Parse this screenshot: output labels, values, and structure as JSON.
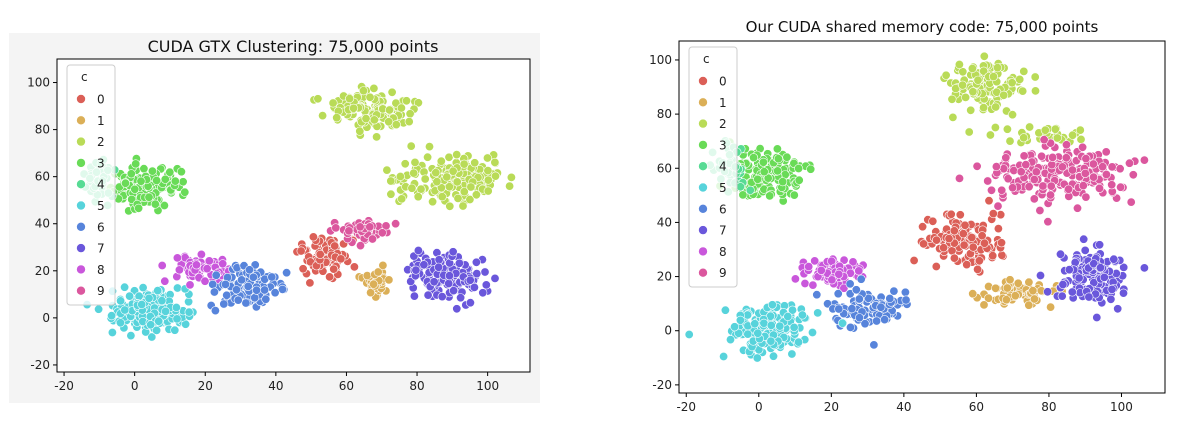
{
  "chart_data": [
    {
      "type": "scatter",
      "title": "CUDA GTX Clustering: 75,000 points",
      "xlabel": "",
      "ylabel": "",
      "xlim": [
        -22,
        112
      ],
      "ylim": [
        -23,
        110
      ],
      "xticks": [
        -20,
        0,
        20,
        40,
        60,
        80,
        100
      ],
      "yticks": [
        -20,
        0,
        20,
        40,
        60,
        80,
        100
      ],
      "legend": {
        "title": "c",
        "position": "top-left",
        "entries": [
          "0",
          "1",
          "2",
          "3",
          "4",
          "5",
          "6",
          "7",
          "8",
          "9"
        ]
      },
      "palette": [
        "#db5f57",
        "#dbaf57",
        "#b9db57",
        "#69db57",
        "#57db94",
        "#57d3db",
        "#5784db",
        "#6a57db",
        "#c957db",
        "#db579e"
      ],
      "clusters": [
        {
          "label": "3",
          "color": "#69db57",
          "center": [
            3,
            55
          ],
          "spread": [
            9,
            8
          ],
          "count": 140
        },
        {
          "label": "4",
          "color": "#57db94",
          "center": [
            -10,
            58
          ],
          "spread": [
            4,
            7
          ],
          "count": 45
        },
        {
          "label": "2",
          "color": "#b9db57",
          "center": [
            67,
            88
          ],
          "spread": [
            12,
            8
          ],
          "count": 130
        },
        {
          "label": "2",
          "color": "#b9db57",
          "center": [
            90,
            59
          ],
          "spread": [
            14,
            10
          ],
          "count": 190
        },
        {
          "label": "5",
          "color": "#57d3db",
          "center": [
            4,
            3
          ],
          "spread": [
            10,
            8
          ],
          "count": 170
        },
        {
          "label": "8",
          "color": "#c957db",
          "center": [
            19,
            21
          ],
          "spread": [
            8,
            5
          ],
          "count": 70
        },
        {
          "label": "6",
          "color": "#5784db",
          "center": [
            33,
            13
          ],
          "spread": [
            9,
            8
          ],
          "count": 110
        },
        {
          "label": "0",
          "color": "#db5f57",
          "center": [
            53,
            26
          ],
          "spread": [
            6,
            8
          ],
          "count": 90
        },
        {
          "label": "9",
          "color": "#db579e",
          "center": [
            64,
            37
          ],
          "spread": [
            7,
            4
          ],
          "count": 55
        },
        {
          "label": "1",
          "color": "#dbaf57",
          "center": [
            68,
            15
          ],
          "spread": [
            4,
            5
          ],
          "count": 45
        },
        {
          "label": "7",
          "color": "#6a57db",
          "center": [
            88,
            18
          ],
          "spread": [
            10,
            9
          ],
          "count": 140
        }
      ]
    },
    {
      "type": "scatter",
      "title": "Our CUDA shared memory code: 75,000 points",
      "xlabel": "",
      "ylabel": "",
      "xlim": [
        -22,
        112
      ],
      "ylim": [
        -23,
        107
      ],
      "xticks": [
        -20,
        0,
        20,
        40,
        60,
        80,
        100
      ],
      "yticks": [
        -20,
        0,
        20,
        40,
        60,
        80,
        100
      ],
      "legend": {
        "title": "c",
        "position": "top-left",
        "entries": [
          "0",
          "1",
          "2",
          "3",
          "4",
          "5",
          "6",
          "7",
          "8",
          "9"
        ]
      },
      "palette": [
        "#db5f57",
        "#dbaf57",
        "#b9db57",
        "#69db57",
        "#57db94",
        "#57d3db",
        "#5784db",
        "#6a57db",
        "#c957db",
        "#db579e"
      ],
      "clusters": [
        {
          "label": "3",
          "color": "#69db57",
          "center": [
            3,
            57
          ],
          "spread": [
            9,
            8
          ],
          "count": 140
        },
        {
          "label": "4",
          "color": "#57db94",
          "center": [
            -8,
            60
          ],
          "spread": [
            4,
            7
          ],
          "count": 45
        },
        {
          "label": "2",
          "color": "#b9db57",
          "center": [
            62,
            90
          ],
          "spread": [
            10,
            8
          ],
          "count": 120
        },
        {
          "label": "2",
          "color": "#b9db57",
          "center": [
            78,
            72
          ],
          "spread": [
            10,
            3
          ],
          "count": 30
        },
        {
          "label": "9",
          "color": "#db579e",
          "center": [
            82,
            58
          ],
          "spread": [
            17,
            9
          ],
          "count": 200
        },
        {
          "label": "0",
          "color": "#db5f57",
          "center": [
            57,
            33
          ],
          "spread": [
            10,
            8
          ],
          "count": 130
        },
        {
          "label": "1",
          "color": "#dbaf57",
          "center": [
            70,
            14
          ],
          "spread": [
            10,
            4
          ],
          "count": 70
        },
        {
          "label": "7",
          "color": "#6a57db",
          "center": [
            92,
            20
          ],
          "spread": [
            8,
            9
          ],
          "count": 130
        },
        {
          "label": "8",
          "color": "#c957db",
          "center": [
            21,
            22
          ],
          "spread": [
            8,
            5
          ],
          "count": 75
        },
        {
          "label": "6",
          "color": "#5784db",
          "center": [
            30,
            8
          ],
          "spread": [
            10,
            7
          ],
          "count": 110
        },
        {
          "label": "5",
          "color": "#57d3db",
          "center": [
            3,
            0
          ],
          "spread": [
            10,
            8
          ],
          "count": 170
        }
      ]
    }
  ]
}
